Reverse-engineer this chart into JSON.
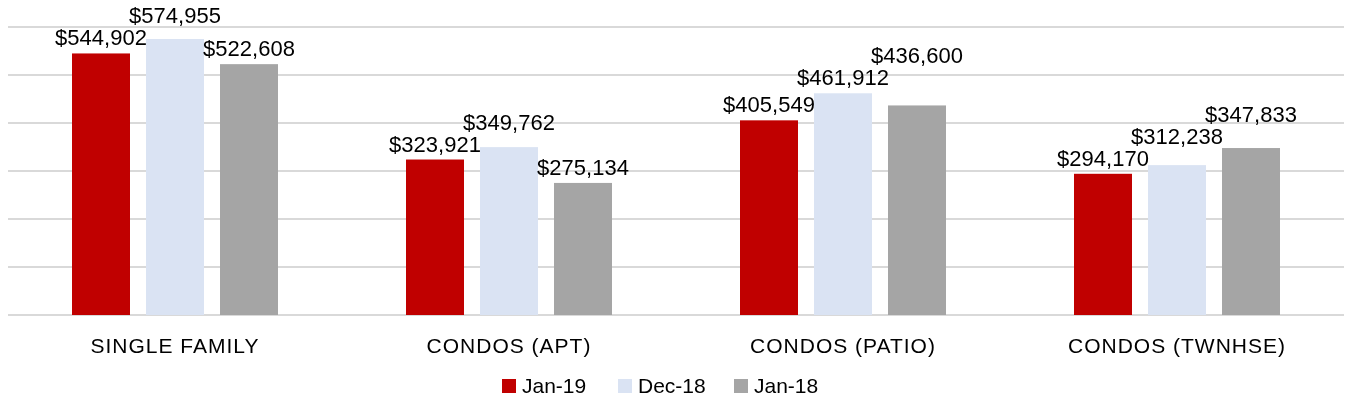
{
  "chart_data": {
    "type": "bar",
    "categories": [
      "SINGLE FAMILY",
      "CONDOS (APT)",
      "CONDOS (PATIO)",
      "CONDOS (TWNHSE)"
    ],
    "series": [
      {
        "name": "Jan-19",
        "color": "#c00000",
        "values": [
          544902,
          323921,
          405549,
          294170
        ],
        "value_labels": [
          "$544,902",
          "$323,921",
          "$405,549",
          "$294,170"
        ]
      },
      {
        "name": "Dec-18",
        "color": "#dae3f3",
        "values": [
          574955,
          349762,
          461912,
          312238
        ],
        "value_labels": [
          "$574,955",
          "$349,762",
          "$461,912",
          "$312,238"
        ]
      },
      {
        "name": "Jan-18",
        "color": "#a5a5a5",
        "values": [
          522608,
          275134,
          436600,
          347833
        ],
        "value_labels": [
          "$522,608",
          "$275,134",
          "$436,600",
          "$347,833"
        ]
      }
    ],
    "ylim": [
      0,
      600000
    ],
    "yticks": [
      {
        "value": 0,
        "label": null
      },
      {
        "value": 100000,
        "label": null
      },
      {
        "value": 200000,
        "label": null
      },
      {
        "value": 300000,
        "label": null
      },
      {
        "value": 400000,
        "label": null
      },
      {
        "value": 500000,
        "label": null
      },
      {
        "value": 600000,
        "label": null
      }
    ],
    "grid": "y",
    "legend": "bottom",
    "tick_labels": "x"
  }
}
